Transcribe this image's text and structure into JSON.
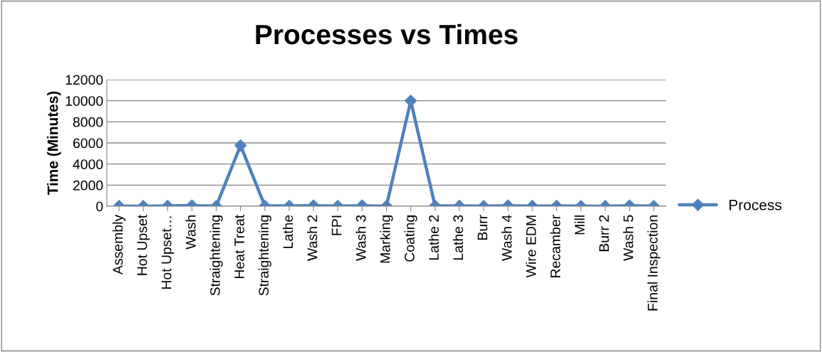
{
  "chart_data": {
    "type": "line",
    "title": "Processes vs Times",
    "ylabel": "Time (Minutes)",
    "categories": [
      "Assembly",
      "Hot Upset",
      "Hot Upset…",
      "Wash",
      "Straightening",
      "Heat Treat",
      "Straightening",
      "Lathe",
      "Wash 2",
      "FPI",
      "Wash 3",
      "Marking",
      "Coating",
      "Lathe 2",
      "Lathe 3",
      "Burr",
      "Wash 4",
      "Wire EDM",
      "Recamber",
      "Mill",
      "Burr 2",
      "Wash 5",
      "Final Inspection"
    ],
    "series": [
      {
        "name": "Process",
        "color": "#4f81bd",
        "values": [
          20,
          10,
          30,
          60,
          15,
          5760,
          30,
          30,
          60,
          20,
          60,
          10,
          10000,
          30,
          30,
          15,
          60,
          20,
          30,
          15,
          10,
          60,
          15
        ]
      }
    ],
    "ylim": [
      0,
      12000
    ],
    "yticks": [
      0,
      2000,
      4000,
      6000,
      8000,
      10000,
      12000
    ],
    "grid": "y",
    "legend": "right",
    "marker": "diamond",
    "line_style": "solid"
  }
}
